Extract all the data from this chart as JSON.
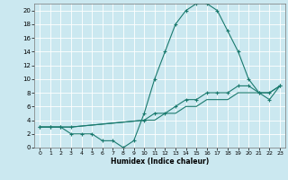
{
  "xlabel": "Humidex (Indice chaleur)",
  "bg_color": "#cbe8f0",
  "grid_color": "#ffffff",
  "line_color": "#1a7a6e",
  "xlim": [
    -0.5,
    23.5
  ],
  "ylim": [
    0,
    21
  ],
  "xticks": [
    0,
    1,
    2,
    3,
    4,
    5,
    6,
    7,
    8,
    9,
    10,
    11,
    12,
    13,
    14,
    15,
    16,
    17,
    18,
    19,
    20,
    21,
    22,
    23
  ],
  "yticks": [
    0,
    2,
    4,
    6,
    8,
    10,
    12,
    14,
    16,
    18,
    20
  ],
  "line1_x": [
    0,
    1,
    2,
    3,
    4,
    5,
    6,
    7,
    8,
    9,
    10,
    11,
    12,
    13,
    14,
    15,
    16,
    17,
    18,
    19,
    20,
    21,
    22,
    23
  ],
  "line1_y": [
    3,
    3,
    3,
    2,
    2,
    2,
    1,
    1,
    0,
    1,
    5,
    10,
    14,
    18,
    20,
    21,
    21,
    20,
    17,
    14,
    10,
    8,
    7,
    9
  ],
  "line2_x": [
    0,
    1,
    2,
    3,
    10,
    11,
    12,
    13,
    14,
    15,
    16,
    17,
    18,
    19,
    20,
    21,
    22,
    23
  ],
  "line2_y": [
    3,
    3,
    3,
    3,
    4,
    5,
    5,
    6,
    7,
    7,
    8,
    8,
    8,
    9,
    9,
    8,
    8,
    9
  ],
  "line3_x": [
    0,
    1,
    2,
    3,
    10,
    11,
    12,
    13,
    14,
    15,
    16,
    17,
    18,
    19,
    20,
    21,
    22,
    23
  ],
  "line3_y": [
    3,
    3,
    3,
    3,
    4,
    4,
    5,
    5,
    6,
    6,
    7,
    7,
    7,
    8,
    8,
    8,
    8,
    9
  ]
}
